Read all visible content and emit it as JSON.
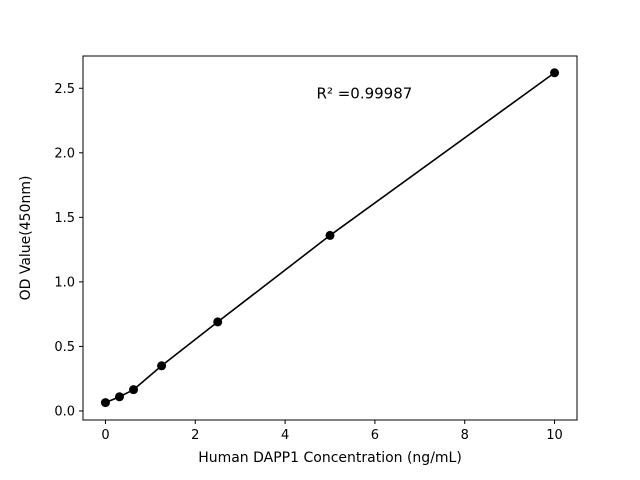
{
  "chart_data": {
    "type": "scatter",
    "title": "",
    "xlabel": "Human DAPP1 Concentration (ng/mL)",
    "ylabel": "OD Value(450nm)",
    "x": [
      0,
      0.3125,
      0.625,
      1.25,
      2.5,
      5,
      10
    ],
    "y": [
      0.065,
      0.11,
      0.165,
      0.35,
      0.69,
      1.36,
      2.62
    ],
    "line": true,
    "xlim": [
      -0.5,
      10.5
    ],
    "ylim": [
      -0.07,
      2.75
    ],
    "xticks": [
      0,
      2,
      4,
      6,
      8,
      10
    ],
    "yticks": [
      0.0,
      0.5,
      1.0,
      1.5,
      2.0,
      2.5
    ],
    "annotation": {
      "text": "R² =0.99987",
      "x": 4.7,
      "y": 2.42
    },
    "grid": false,
    "legend": null,
    "marker_color": "#000000",
    "line_color": "#000000",
    "axis_color": "#000000",
    "background": "#ffffff"
  }
}
